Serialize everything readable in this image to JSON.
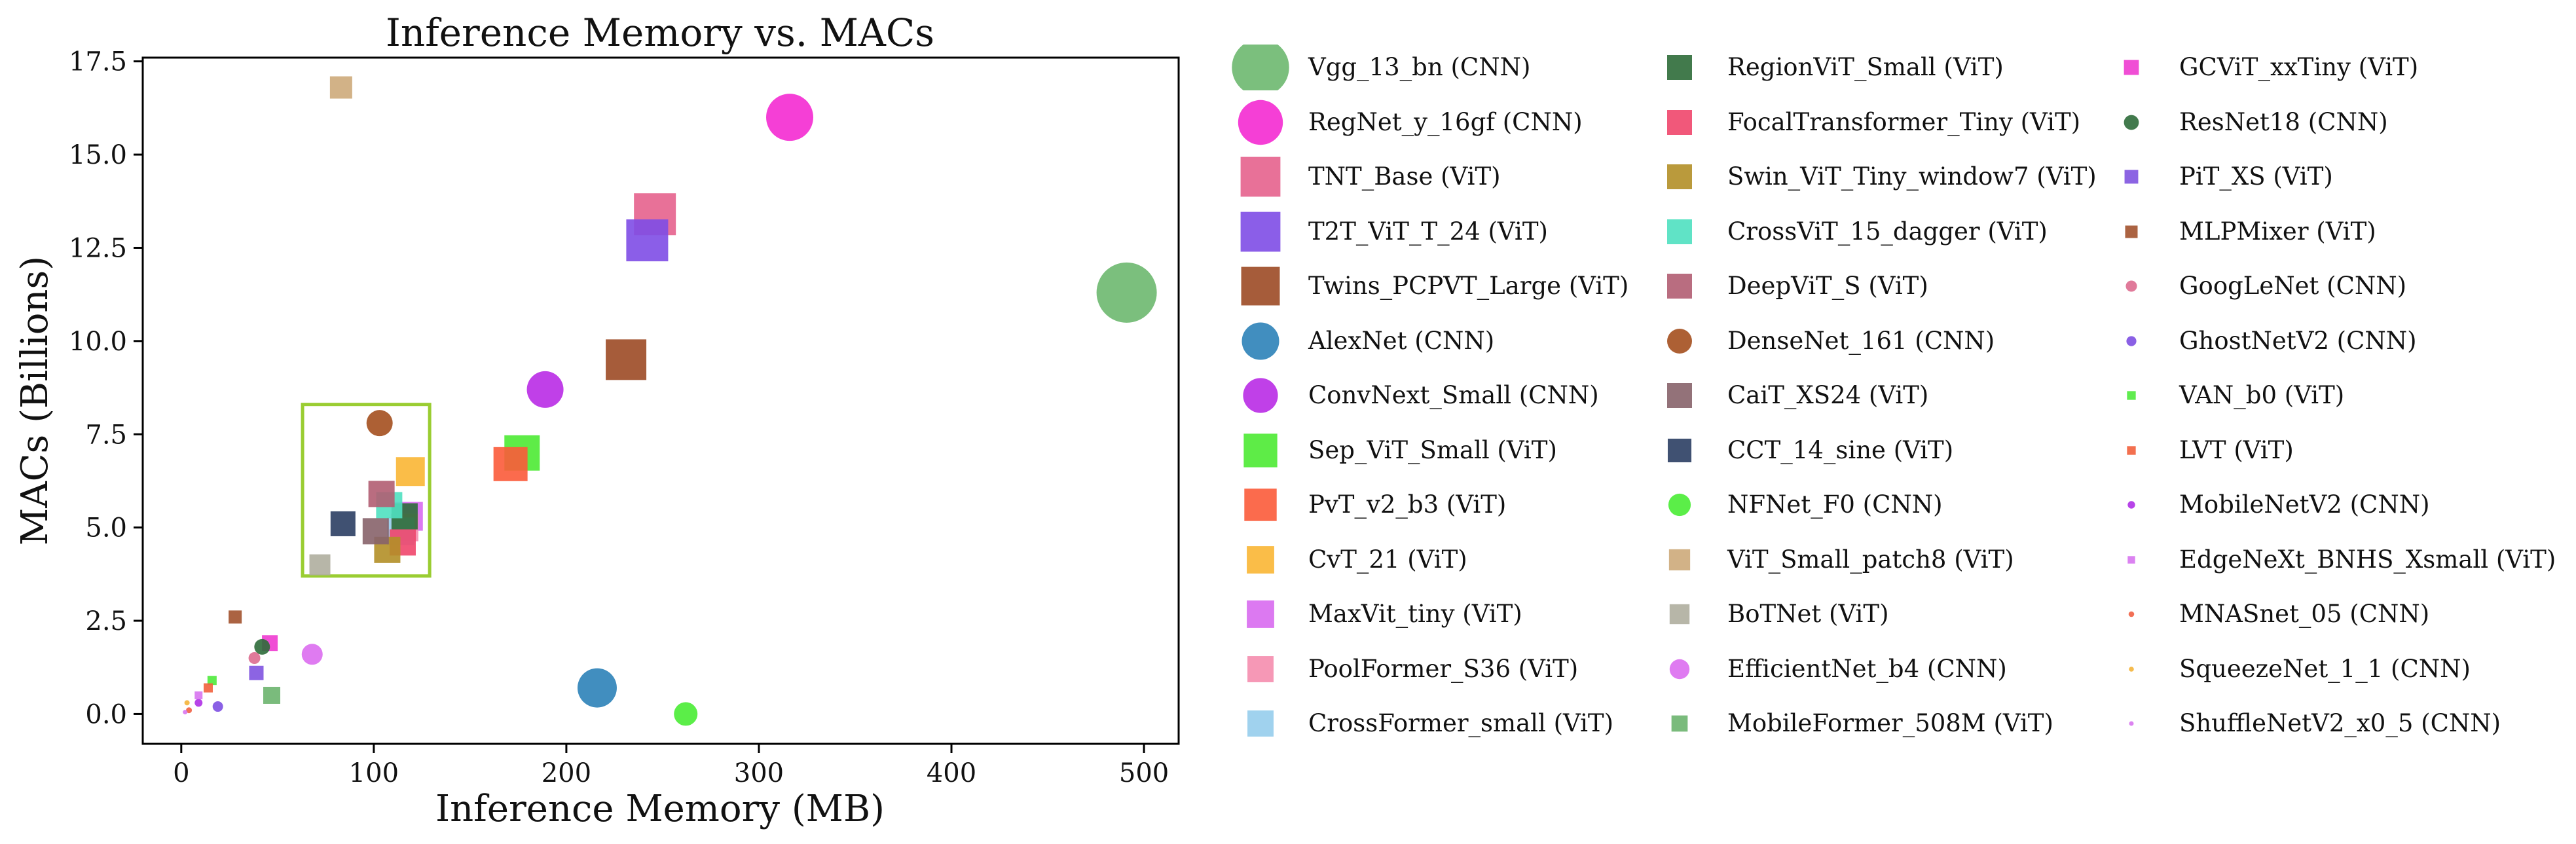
{
  "chart_data": {
    "type": "scatter",
    "title": "Inference  Memory vs. MACs",
    "xlabel": "Inference Memory (MB)",
    "ylabel": "MACs (Billions)",
    "xlim": [
      -20,
      518
    ],
    "ylim": [
      -0.8,
      17.6
    ],
    "xticks": [
      0,
      100,
      200,
      300,
      400,
      500
    ],
    "yticks": [
      0.0,
      2.5,
      5.0,
      7.5,
      10.0,
      12.5,
      15.0,
      17.5
    ],
    "xtick_labels": [
      "0",
      "100",
      "200",
      "300",
      "400",
      "500"
    ],
    "ytick_labels": [
      "0.0",
      "2.5",
      "5.0",
      "7.5",
      "10.0",
      "12.5",
      "15.0",
      "17.5"
    ],
    "grid": false,
    "legend_position": "right, outside plot, 3 columns",
    "highlight_box": {
      "x": [
        63,
        129
      ],
      "y": [
        3.7,
        8.3
      ],
      "color": "#9ACD32"
    },
    "series": [
      {
        "name": "Vgg_13_bn (CNN)",
        "memory": 491,
        "macs": 11.3,
        "marker": "circle",
        "color": "#6DB86F",
        "size": 92
      },
      {
        "name": "RegNet_y_16gf (CNN)",
        "memory": 316,
        "macs": 16.0,
        "marker": "circle",
        "color": "#F42AD2",
        "size": 72
      },
      {
        "name": "TNT_Base (ViT)",
        "memory": 246,
        "macs": 13.4,
        "marker": "square",
        "color": "#E5628D",
        "size": 64
      },
      {
        "name": "T2T_ViT_T_24 (ViT)",
        "memory": 242,
        "macs": 12.7,
        "marker": "square",
        "color": "#7E4CE6",
        "size": 64
      },
      {
        "name": "Twins_PCPVT_Large (ViT)",
        "memory": 231,
        "macs": 9.5,
        "marker": "square",
        "color": "#9C4A25",
        "size": 62
      },
      {
        "name": "AlexNet (CNN)",
        "memory": 216,
        "macs": 0.7,
        "marker": "circle",
        "color": "#2C82B8",
        "size": 60
      },
      {
        "name": "ConvNext_Small (CNN)",
        "memory": 189,
        "macs": 8.7,
        "marker": "circle",
        "color": "#B92BE6",
        "size": 56
      },
      {
        "name": "Sep_ViT_Small (ViT)",
        "memory": 177,
        "macs": 7.0,
        "marker": "square",
        "color": "#4CEA33",
        "size": 54
      },
      {
        "name": "PvT_v2_b3 (ViT)",
        "memory": 171,
        "macs": 6.7,
        "marker": "square",
        "color": "#FB5B3A",
        "size": 52
      },
      {
        "name": "CvT_21 (ViT)",
        "memory": 119,
        "macs": 6.5,
        "marker": "square",
        "color": "#F9B634",
        "size": 44
      },
      {
        "name": "MaxVit_tiny (ViT)",
        "memory": 118,
        "macs": 5.3,
        "marker": "square",
        "color": "#D86AF0",
        "size": 44
      },
      {
        "name": "PoolFormer_S36 (ViT)",
        "memory": 116,
        "macs": 5.0,
        "marker": "square",
        "color": "#F58DAE",
        "size": 42
      },
      {
        "name": "CrossFormer_small (ViT)",
        "memory": 114,
        "macs": 4.9,
        "marker": "square",
        "color": "#96CDEC",
        "size": 42
      },
      {
        "name": "RegionViT_Small (ViT)",
        "memory": 116,
        "macs": 5.3,
        "marker": "square",
        "color": "#2E6B38",
        "size": 40
      },
      {
        "name": "FocalTransformer_Tiny (ViT)",
        "memory": 115,
        "macs": 4.6,
        "marker": "square",
        "color": "#F0466B",
        "size": 40
      },
      {
        "name": "Swin_ViT_Tiny_window7 (ViT)",
        "memory": 107,
        "macs": 4.4,
        "marker": "square",
        "color": "#B38F27",
        "size": 40
      },
      {
        "name": "CrossViT_15_dagger (ViT)",
        "memory": 108,
        "macs": 5.6,
        "marker": "square",
        "color": "#4FE0C0",
        "size": 40
      },
      {
        "name": "DeepViT_S (ViT)",
        "memory": 104,
        "macs": 5.9,
        "marker": "square",
        "color": "#B15D72",
        "size": 40
      },
      {
        "name": "DenseNet_161 (CNN)",
        "memory": 103,
        "macs": 7.8,
        "marker": "circle",
        "color": "#A44F1E",
        "size": 40
      },
      {
        "name": "CaiT_XS24 (ViT)",
        "memory": 101,
        "macs": 4.9,
        "marker": "square",
        "color": "#87636A",
        "size": 40
      },
      {
        "name": "CCT_14_sine (ViT)",
        "memory": 84,
        "macs": 5.1,
        "marker": "square",
        "color": "#2B3E63",
        "size": 38
      },
      {
        "name": "NFNet_F0 (CNN)",
        "memory": 262,
        "macs": 0.0,
        "marker": "circle",
        "color": "#49EC34",
        "size": 36
      },
      {
        "name": "ViT_Small_patch8 (ViT)",
        "memory": 83,
        "macs": 16.8,
        "marker": "square",
        "color": "#CDAA7A",
        "size": 34
      },
      {
        "name": "BoTNet (ViT)",
        "memory": 72,
        "macs": 4.0,
        "marker": "square",
        "color": "#AFAE9E",
        "size": 32
      },
      {
        "name": "EfficientNet_b4 (CNN)",
        "memory": 68,
        "macs": 1.6,
        "marker": "circle",
        "color": "#DB6DF0",
        "size": 32
      },
      {
        "name": "MobileFormer_508M (ViT)",
        "memory": 47,
        "macs": 0.5,
        "marker": "square",
        "color": "#6BB46E",
        "size": 26
      },
      {
        "name": "GCViT_xxTiny (ViT)",
        "memory": 46,
        "macs": 1.9,
        "marker": "square",
        "color": "#EE3BD0",
        "size": 24
      },
      {
        "name": "ResNet18 (CNN)",
        "memory": 42,
        "macs": 1.8,
        "marker": "circle",
        "color": "#2E6B3A",
        "size": 24
      },
      {
        "name": "PiT_XS (ViT)",
        "memory": 39,
        "macs": 1.1,
        "marker": "square",
        "color": "#7F53E0",
        "size": 22
      },
      {
        "name": "MLPMixer (ViT)",
        "memory": 28,
        "macs": 2.6,
        "marker": "square",
        "color": "#A2522E",
        "size": 20
      },
      {
        "name": "GoogLeNet (CNN)",
        "memory": 38,
        "macs": 1.5,
        "marker": "circle",
        "color": "#DD6C8F",
        "size": 18
      },
      {
        "name": "GhostNetV2 (CNN)",
        "memory": 19,
        "macs": 0.2,
        "marker": "circle",
        "color": "#7D4FE2",
        "size": 16
      },
      {
        "name": "VAN_b0 (ViT)",
        "memory": 16,
        "macs": 0.9,
        "marker": "square",
        "color": "#4FEA3C",
        "size": 14
      },
      {
        "name": "LVT (ViT)",
        "memory": 14,
        "macs": 0.7,
        "marker": "square",
        "color": "#F2603C",
        "size": 14
      },
      {
        "name": "MobileNetV2 (CNN)",
        "memory": 9,
        "macs": 0.3,
        "marker": "circle",
        "color": "#AF30E6",
        "size": 12
      },
      {
        "name": "EdgeNeXt_BNHS_Xsmall (ViT)",
        "memory": 9,
        "macs": 0.5,
        "marker": "square",
        "color": "#D774EF",
        "size": 12
      },
      {
        "name": "MNASnet_05 (CNN)",
        "memory": 4,
        "macs": 0.1,
        "marker": "circle",
        "color": "#F16044",
        "size": 9
      },
      {
        "name": "SqueezeNet_1_1 (CNN)",
        "memory": 3,
        "macs": 0.3,
        "marker": "circle",
        "color": "#F4B43A",
        "size": 8
      },
      {
        "name": "ShuffleNetV2_x0_5 (CNN)",
        "memory": 2,
        "macs": 0.05,
        "marker": "circle",
        "color": "#D875EE",
        "size": 7
      }
    ]
  }
}
